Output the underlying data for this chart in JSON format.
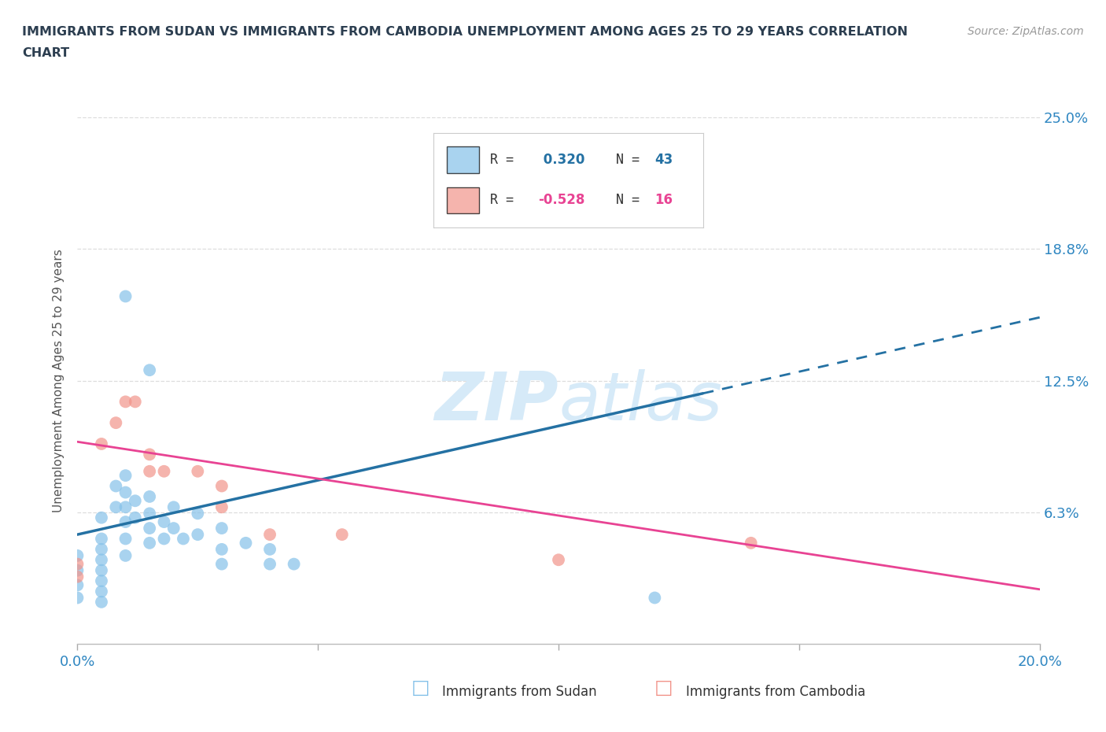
{
  "title_line1": "IMMIGRANTS FROM SUDAN VS IMMIGRANTS FROM CAMBODIA UNEMPLOYMENT AMONG AGES 25 TO 29 YEARS CORRELATION",
  "title_line2": "CHART",
  "source": "Source: ZipAtlas.com",
  "ylabel": "Unemployment Among Ages 25 to 29 years",
  "xlim": [
    0.0,
    0.2
  ],
  "ylim": [
    0.0,
    0.25
  ],
  "yticks": [
    0.0,
    0.0625,
    0.125,
    0.1875,
    0.25
  ],
  "ytick_labels": [
    "",
    "6.3%",
    "12.5%",
    "18.8%",
    "25.0%"
  ],
  "xticks": [
    0.0,
    0.05,
    0.1,
    0.15,
    0.2
  ],
  "xtick_labels": [
    "0.0%",
    "",
    "",
    "",
    "20.0%"
  ],
  "sudan_R": 0.32,
  "sudan_N": 43,
  "cambodia_R": -0.528,
  "cambodia_N": 16,
  "sudan_color": "#85c1e9",
  "cambodia_color": "#f1948a",
  "trendline_sudan_color": "#2471a3",
  "trendline_cambodia_color": "#e84393",
  "watermark_color": "#d6eaf8",
  "axis_label_color": "#2e86c1",
  "title_color": "#2c3e50",
  "grid_color": "#dddddd",
  "sudan_points": [
    [
      0.0,
      0.035
    ],
    [
      0.0,
      0.042
    ],
    [
      0.0,
      0.028
    ],
    [
      0.0,
      0.022
    ],
    [
      0.005,
      0.06
    ],
    [
      0.005,
      0.05
    ],
    [
      0.005,
      0.045
    ],
    [
      0.005,
      0.04
    ],
    [
      0.005,
      0.035
    ],
    [
      0.005,
      0.03
    ],
    [
      0.005,
      0.025
    ],
    [
      0.005,
      0.02
    ],
    [
      0.008,
      0.075
    ],
    [
      0.008,
      0.065
    ],
    [
      0.01,
      0.08
    ],
    [
      0.01,
      0.072
    ],
    [
      0.01,
      0.065
    ],
    [
      0.01,
      0.058
    ],
    [
      0.01,
      0.05
    ],
    [
      0.01,
      0.042
    ],
    [
      0.012,
      0.068
    ],
    [
      0.012,
      0.06
    ],
    [
      0.015,
      0.07
    ],
    [
      0.015,
      0.062
    ],
    [
      0.015,
      0.055
    ],
    [
      0.015,
      0.048
    ],
    [
      0.018,
      0.058
    ],
    [
      0.018,
      0.05
    ],
    [
      0.02,
      0.065
    ],
    [
      0.02,
      0.055
    ],
    [
      0.022,
      0.05
    ],
    [
      0.025,
      0.062
    ],
    [
      0.025,
      0.052
    ],
    [
      0.03,
      0.055
    ],
    [
      0.03,
      0.045
    ],
    [
      0.03,
      0.038
    ],
    [
      0.035,
      0.048
    ],
    [
      0.04,
      0.045
    ],
    [
      0.04,
      0.038
    ],
    [
      0.045,
      0.038
    ],
    [
      0.01,
      0.165
    ],
    [
      0.015,
      0.13
    ],
    [
      0.12,
      0.022
    ]
  ],
  "cambodia_points": [
    [
      0.0,
      0.038
    ],
    [
      0.0,
      0.032
    ],
    [
      0.005,
      0.095
    ],
    [
      0.008,
      0.105
    ],
    [
      0.01,
      0.115
    ],
    [
      0.012,
      0.115
    ],
    [
      0.015,
      0.09
    ],
    [
      0.015,
      0.082
    ],
    [
      0.018,
      0.082
    ],
    [
      0.025,
      0.082
    ],
    [
      0.03,
      0.075
    ],
    [
      0.03,
      0.065
    ],
    [
      0.04,
      0.052
    ],
    [
      0.055,
      0.052
    ],
    [
      0.14,
      0.048
    ],
    [
      0.1,
      0.04
    ]
  ],
  "sudan_trend_solid_x0": 0.0,
  "sudan_trend_solid_x1": 0.13,
  "sudan_trend_y_at_0": 0.052,
  "sudan_trend_y_at_020": 0.155,
  "sudan_trend_dashed_x0": 0.13,
  "sudan_trend_dashed_x1": 0.2,
  "cambodia_trend_x0": 0.0,
  "cambodia_trend_x1": 0.2,
  "cambodia_trend_y0": 0.096,
  "cambodia_trend_y1": 0.026
}
